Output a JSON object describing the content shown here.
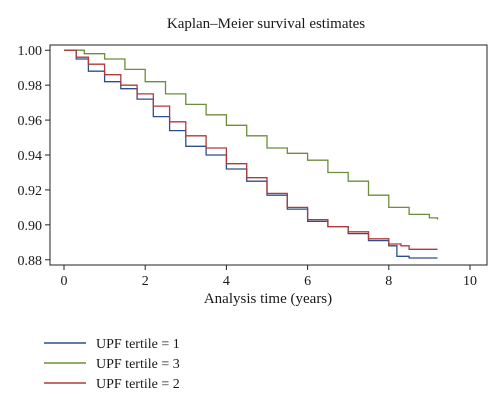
{
  "chart_data": {
    "type": "line",
    "title": "Kaplan–Meier survival estimates",
    "xlabel": "Analysis time (years)",
    "ylabel": "",
    "xlim": [
      0,
      10
    ],
    "ylim": [
      0.877,
      1.003
    ],
    "x_ticks": [
      0,
      2,
      4,
      6,
      8,
      10
    ],
    "y_ticks": [
      1.0,
      0.98,
      0.96,
      0.94,
      0.92,
      0.9,
      0.88
    ],
    "x_tick_labels": [
      "0",
      "2",
      "4",
      "6",
      "8",
      "10"
    ],
    "y_tick_labels": [
      "1.00",
      "0.98",
      "0.96",
      "0.94",
      "0.92",
      "0.90",
      "0.88"
    ],
    "grid": false,
    "legend_position": "bottom-left",
    "series": [
      {
        "name": "UPF tertile = 1",
        "color": "#2b4f8e",
        "x": [
          0,
          0.3,
          0.6,
          1.0,
          1.4,
          1.8,
          2.2,
          2.6,
          3.0,
          3.5,
          4.0,
          4.5,
          5.0,
          5.5,
          6.0,
          6.5,
          7.0,
          7.5,
          8.0,
          8.2,
          8.5,
          9.2
        ],
        "y": [
          1.0,
          0.995,
          0.988,
          0.982,
          0.978,
          0.972,
          0.962,
          0.954,
          0.945,
          0.94,
          0.932,
          0.925,
          0.917,
          0.909,
          0.902,
          0.899,
          0.895,
          0.891,
          0.888,
          0.882,
          0.881,
          0.881
        ]
      },
      {
        "name": "UPF tertile = 3",
        "color": "#6a8e3a",
        "x": [
          0,
          0.5,
          1.0,
          1.5,
          2.0,
          2.5,
          3.0,
          3.5,
          4.0,
          4.5,
          5.0,
          5.5,
          6.0,
          6.5,
          7.0,
          7.5,
          8.0,
          8.5,
          9.0,
          9.2
        ],
        "y": [
          1.0,
          0.998,
          0.995,
          0.989,
          0.982,
          0.975,
          0.969,
          0.963,
          0.957,
          0.951,
          0.944,
          0.941,
          0.937,
          0.93,
          0.925,
          0.917,
          0.91,
          0.906,
          0.904,
          0.903
        ]
      },
      {
        "name": "UPF tertile = 2",
        "color": "#b03a3a",
        "x": [
          0,
          0.3,
          0.6,
          1.0,
          1.4,
          1.8,
          2.2,
          2.6,
          3.0,
          3.5,
          4.0,
          4.5,
          5.0,
          5.5,
          6.0,
          6.5,
          7.0,
          7.5,
          8.0,
          8.3,
          8.5,
          9.2
        ],
        "y": [
          1.0,
          0.996,
          0.992,
          0.986,
          0.98,
          0.975,
          0.968,
          0.959,
          0.951,
          0.944,
          0.935,
          0.927,
          0.918,
          0.91,
          0.903,
          0.899,
          0.896,
          0.892,
          0.889,
          0.888,
          0.886,
          0.886
        ]
      }
    ]
  }
}
